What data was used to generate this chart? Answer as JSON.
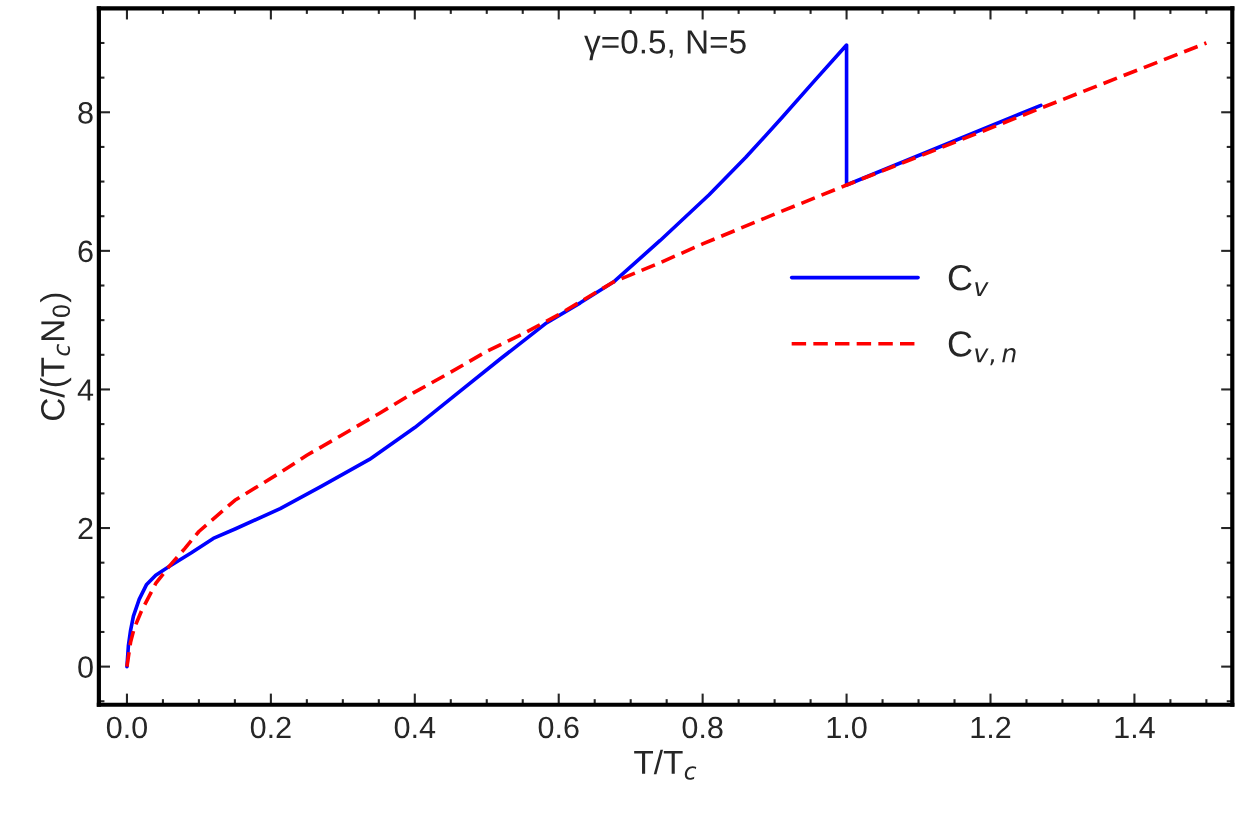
{
  "chart_data": {
    "type": "line",
    "xlabel": "T/T$_{c}$",
    "ylabel": "C/(T$_{c}$N$_{0}$)",
    "annotations": [
      "γ=0.5, N=5"
    ],
    "series": [
      {
        "name": "C$_{v}$",
        "color": "#0000ff",
        "line_style": "solid",
        "x": [
          0,
          0.002,
          0.005,
          0.009,
          0.017,
          0.027,
          0.04,
          0.058,
          0.089,
          0.12,
          0.151,
          0.213,
          0.27,
          0.337,
          0.4,
          0.46,
          0.52,
          0.583,
          0.63,
          0.676,
          0.741,
          0.809,
          0.86,
          0.91,
          0.955,
          1.0,
          1.0,
          1.27
        ],
        "values": [
          0,
          0.3,
          0.52,
          0.73,
          0.97,
          1.18,
          1.32,
          1.44,
          1.64,
          1.85,
          1.99,
          2.28,
          2.6,
          2.99,
          3.45,
          3.95,
          4.45,
          4.96,
          5.25,
          5.55,
          6.15,
          6.81,
          7.35,
          7.92,
          8.45,
          8.97,
          6.95,
          8.1
        ]
      },
      {
        "name": "C$_{v,n}$",
        "color": "#ff0000",
        "line_style": "dashed",
        "x": [
          0,
          0.005,
          0.01,
          0.02,
          0.04,
          0.058,
          0.08,
          0.1,
          0.15,
          0.213,
          0.25,
          0.3,
          0.35,
          0.398,
          0.45,
          0.5,
          0.55,
          0.6,
          0.676,
          0.741,
          0.8,
          0.9,
          1.0,
          1.27,
          1.5
        ],
        "values": [
          0,
          0.35,
          0.55,
          0.8,
          1.2,
          1.44,
          1.7,
          1.95,
          2.4,
          2.8,
          3.05,
          3.35,
          3.65,
          3.95,
          4.25,
          4.55,
          4.8,
          5.08,
          5.55,
          5.83,
          6.1,
          6.53,
          6.95,
          8.06,
          9.0
        ]
      }
    ],
    "xlim": [
      -0.039,
      1.536
    ],
    "ylim": [
      -0.55,
      9.5
    ],
    "xticks": [
      {
        "value": 0,
        "label": "0.0"
      },
      0.2,
      0.4,
      0.6,
      0.8,
      {
        "value": 1,
        "label": "1.0"
      },
      1.2,
      1.4
    ],
    "yticks": [
      0,
      2,
      4,
      6,
      8
    ],
    "grid": false,
    "legend": "right",
    "marker": "none"
  }
}
